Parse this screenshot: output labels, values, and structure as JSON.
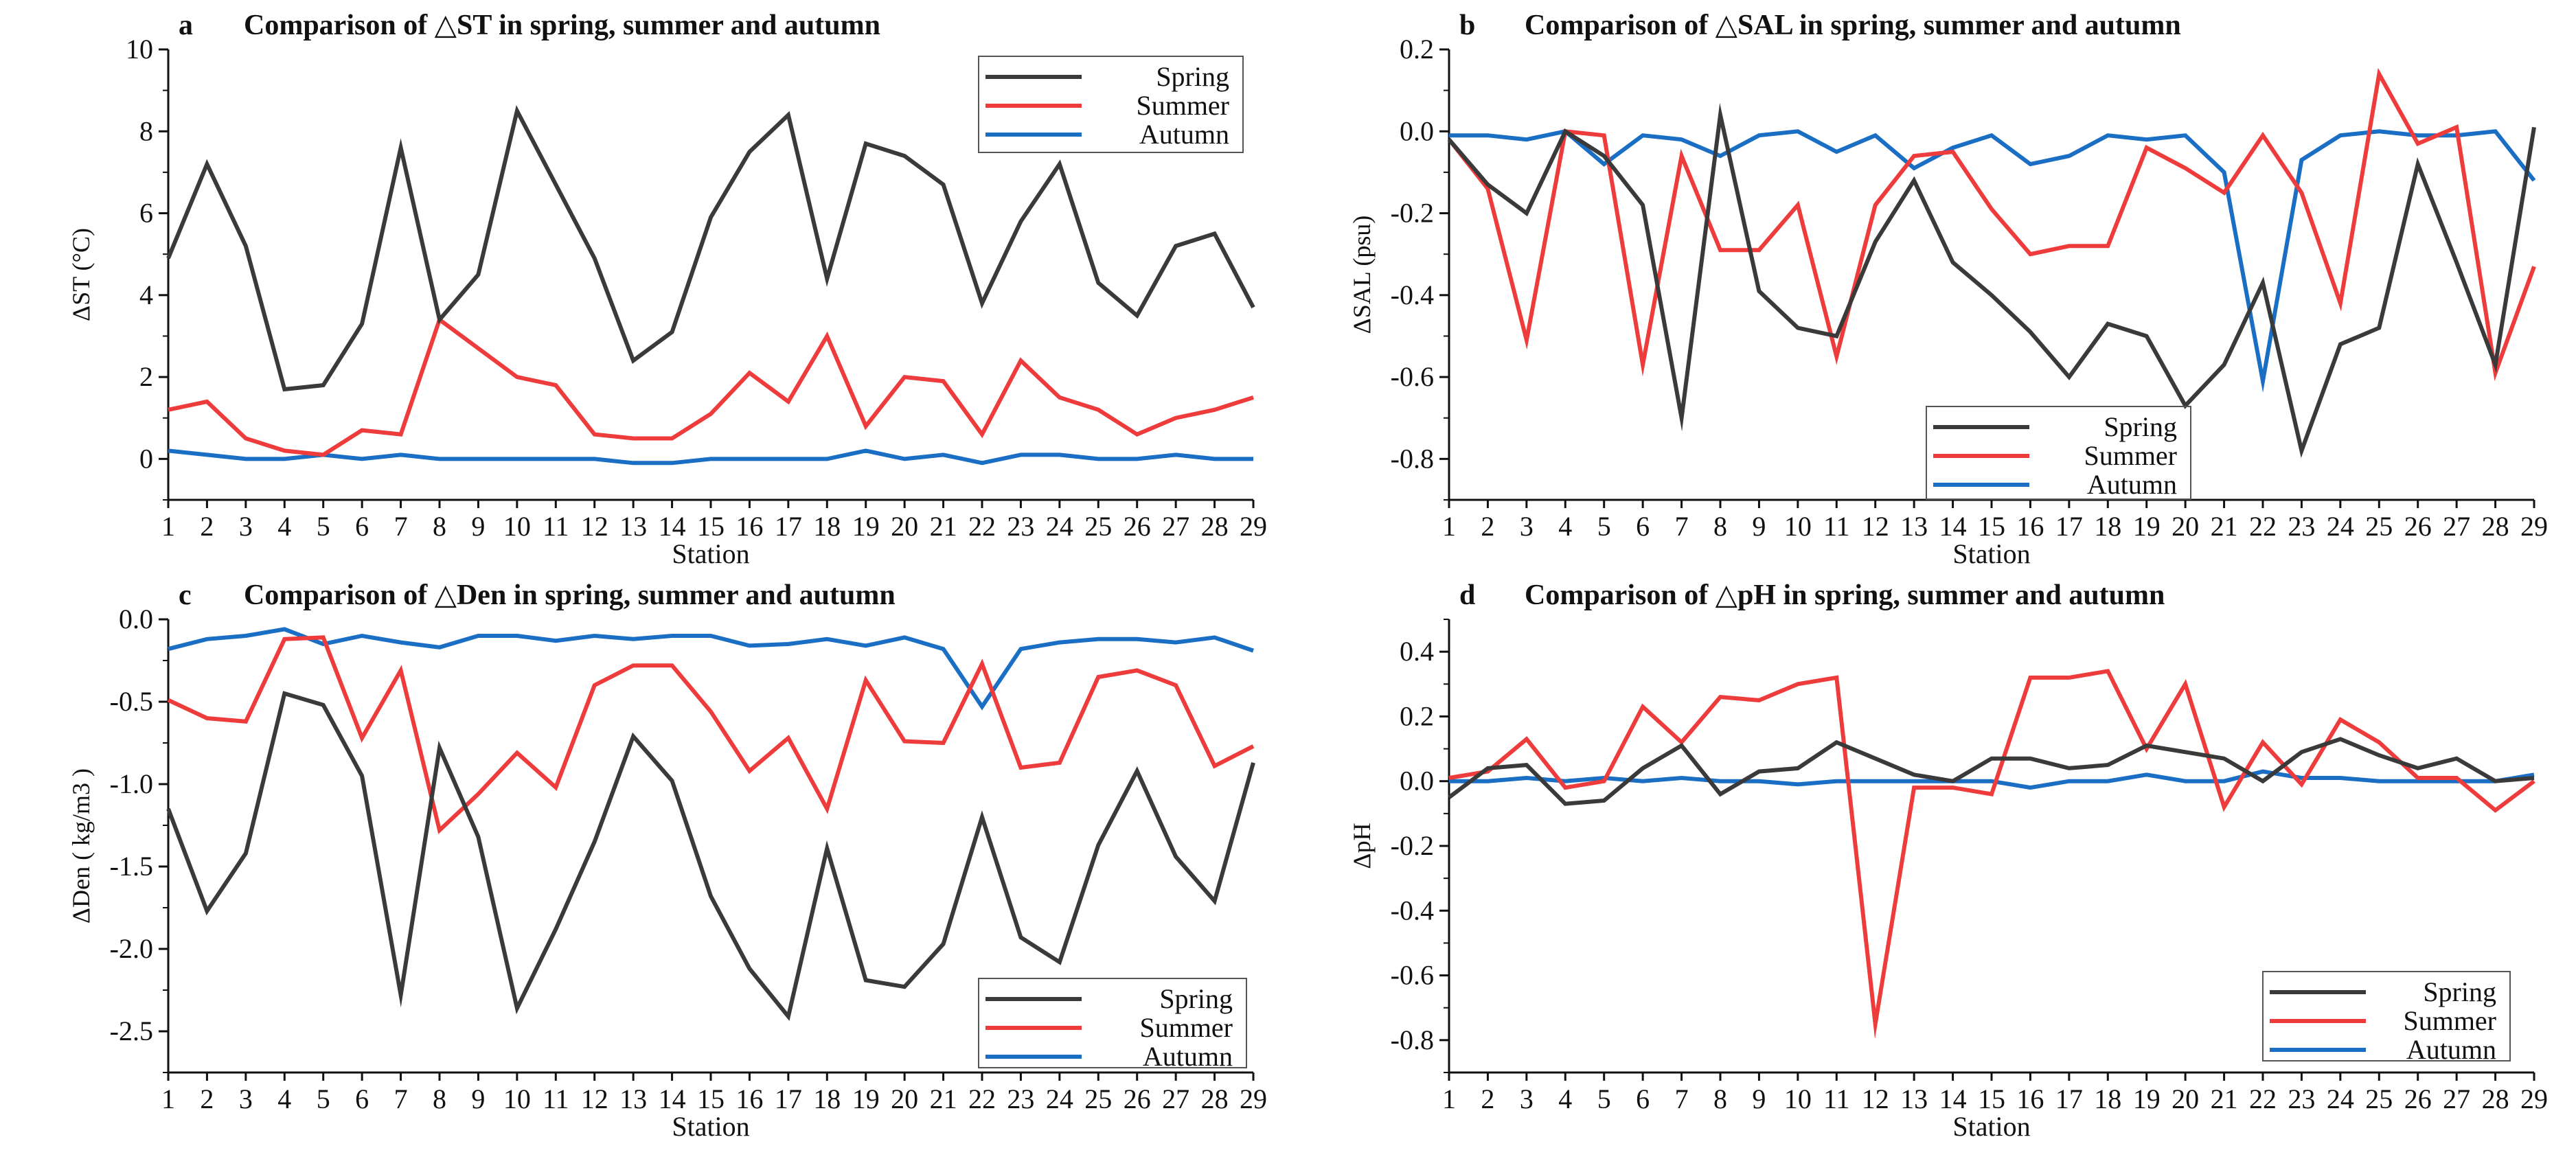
{
  "figure": {
    "colors": {
      "spring": "#3a3a3a",
      "summer": "#ee3b3b",
      "autumn": "#1a6fc4",
      "axis": "#111111"
    }
  },
  "chart_data": [
    {
      "id": "a",
      "type": "line",
      "letter": "a",
      "title": "Comparison of △ST in spring, summer and autumn",
      "xlabel": "Station",
      "ylabel": "ΔST (°C)",
      "x": [
        1,
        2,
        3,
        4,
        5,
        6,
        7,
        8,
        9,
        10,
        11,
        12,
        13,
        14,
        15,
        16,
        17,
        18,
        19,
        20,
        21,
        22,
        23,
        24,
        25,
        26,
        27,
        28,
        29
      ],
      "x_tick_labels": [
        "1",
        "2",
        "3",
        "4",
        "5",
        "6",
        "7",
        "8",
        "9",
        "10",
        "11",
        "12",
        "13",
        "14",
        "15",
        "16",
        "17",
        "18",
        "19",
        "20",
        "21",
        "22",
        "23",
        "24",
        "25",
        "26",
        "27",
        "28",
        "29"
      ],
      "ylim": [
        -1,
        10
      ],
      "yticks": [
        0,
        2,
        4,
        6,
        8,
        10
      ],
      "ytick_labels": [
        "0",
        "2",
        "4",
        "6",
        "8",
        "10"
      ],
      "legend_position": "top-right",
      "legend_entries": [
        "Spring",
        "Summer",
        "Autumn"
      ],
      "series": [
        {
          "name": "Spring",
          "key": "spring",
          "values": [
            4.9,
            7.2,
            5.2,
            1.7,
            1.8,
            3.3,
            7.6,
            3.4,
            4.5,
            8.5,
            6.7,
            4.9,
            2.4,
            3.1,
            5.9,
            7.5,
            8.4,
            4.4,
            7.7,
            7.4,
            6.7,
            3.8,
            5.8,
            7.2,
            4.3,
            3.5,
            5.2,
            5.5,
            3.7
          ]
        },
        {
          "name": "Summer",
          "key": "summer",
          "values": [
            1.2,
            1.4,
            0.5,
            0.2,
            0.1,
            0.7,
            0.6,
            3.4,
            2.7,
            2.0,
            1.8,
            0.6,
            0.5,
            0.5,
            1.1,
            2.1,
            1.4,
            3.0,
            0.8,
            2.0,
            1.9,
            0.6,
            2.4,
            1.5,
            1.2,
            0.6,
            1.0,
            1.2,
            1.5
          ]
        },
        {
          "name": "Autumn",
          "key": "autumn",
          "values": [
            0.2,
            0.1,
            0.0,
            0.0,
            0.1,
            0.0,
            0.1,
            0.0,
            0.0,
            0.0,
            0.0,
            0.0,
            -0.1,
            -0.1,
            0.0,
            0.0,
            0.0,
            0.0,
            0.2,
            0.0,
            0.1,
            -0.1,
            0.1,
            0.1,
            0.0,
            0.0,
            0.1,
            0.0,
            0.0
          ]
        }
      ]
    },
    {
      "id": "b",
      "type": "line",
      "letter": "b",
      "title": "Comparison of △SAL in spring, summer and autumn",
      "xlabel": "Station",
      "ylabel": "ΔSAL (psu)",
      "x": [
        1,
        2,
        3,
        4,
        5,
        6,
        7,
        8,
        9,
        10,
        11,
        12,
        13,
        14,
        15,
        16,
        17,
        18,
        19,
        20,
        21,
        22,
        23,
        24,
        25,
        26,
        27,
        28,
        29
      ],
      "x_tick_labels": [
        "1",
        "2",
        "3",
        "4",
        "5",
        "6",
        "7",
        "8",
        "9",
        "10",
        "11",
        "12",
        "13",
        "14",
        "15",
        "16",
        "17",
        "18",
        "19",
        "20",
        "21",
        "22",
        "23",
        "24",
        "25",
        "26",
        "27",
        "28",
        "29"
      ],
      "ylim": [
        -0.9,
        0.2
      ],
      "yticks": [
        0.2,
        0.0,
        -0.2,
        -0.4,
        -0.6,
        -0.8
      ],
      "ytick_labels": [
        "0.2",
        "0.0",
        "-0.2",
        "-0.4",
        "-0.6",
        "-0.8"
      ],
      "legend_position": "bottom-left",
      "legend_entries": [
        "Spring",
        "Summer",
        "Autumn"
      ],
      "series": [
        {
          "name": "Spring",
          "key": "spring",
          "values": [
            -0.02,
            -0.13,
            -0.2,
            0.0,
            -0.06,
            -0.18,
            -0.7,
            0.04,
            -0.39,
            -0.48,
            -0.5,
            -0.27,
            -0.12,
            -0.32,
            -0.4,
            -0.49,
            -0.6,
            -0.47,
            -0.5,
            -0.67,
            -0.57,
            -0.37,
            -0.78,
            -0.52,
            -0.48,
            -0.08,
            -0.32,
            -0.57,
            0.01
          ]
        },
        {
          "name": "Summer",
          "key": "summer",
          "values": [
            -0.02,
            -0.14,
            -0.51,
            0.0,
            -0.01,
            -0.57,
            -0.06,
            -0.29,
            -0.29,
            -0.18,
            -0.55,
            -0.18,
            -0.06,
            -0.05,
            -0.19,
            -0.3,
            -0.28,
            -0.28,
            -0.04,
            -0.09,
            -0.15,
            -0.01,
            -0.15,
            -0.42,
            0.14,
            -0.03,
            0.01,
            -0.59,
            -0.33
          ]
        },
        {
          "name": "Autumn",
          "key": "autumn",
          "values": [
            -0.01,
            -0.01,
            -0.02,
            0.0,
            -0.08,
            -0.01,
            -0.02,
            -0.06,
            -0.01,
            0.0,
            -0.05,
            -0.01,
            -0.09,
            -0.04,
            -0.01,
            -0.08,
            -0.06,
            -0.01,
            -0.02,
            -0.01,
            -0.1,
            -0.61,
            -0.07,
            -0.01,
            0.0,
            -0.01,
            -0.01,
            0.0,
            -0.12
          ]
        }
      ]
    },
    {
      "id": "c",
      "type": "line",
      "letter": "c",
      "title": "Comparison of △Den in spring, summer and autumn",
      "xlabel": "Station",
      "ylabel": "ΔDen ( kg/m3 )",
      "x": [
        1,
        2,
        3,
        4,
        5,
        6,
        7,
        8,
        9,
        10,
        11,
        12,
        13,
        14,
        15,
        16,
        17,
        18,
        19,
        20,
        21,
        22,
        23,
        24,
        25,
        26,
        27,
        28,
        29
      ],
      "x_tick_labels": [
        "1",
        "2",
        "3",
        "4",
        "5",
        "6",
        "7",
        "8",
        "9",
        "10",
        "11",
        "12",
        "13",
        "14",
        "15",
        "16",
        "17",
        "18",
        "19",
        "20",
        "21",
        "22",
        "23",
        "24",
        "25",
        "26",
        "27",
        "28",
        "29"
      ],
      "ylim": [
        -2.75,
        0.0
      ],
      "yticks": [
        0.0,
        -0.5,
        -1.0,
        -1.5,
        -2.0,
        -2.5
      ],
      "ytick_labels": [
        "0.0",
        "-0.5",
        "-1.0",
        "-1.5",
        "-2.0",
        "-2.5"
      ],
      "legend_position": "bottom-right",
      "legend_entries": [
        "Spring",
        "Summer",
        "Autumn"
      ],
      "series": [
        {
          "name": "Spring",
          "key": "spring",
          "values": [
            -1.15,
            -1.77,
            -1.42,
            -0.45,
            -0.52,
            -0.95,
            -2.28,
            -0.78,
            -1.32,
            -2.36,
            -1.88,
            -1.35,
            -0.71,
            -0.98,
            -1.68,
            -2.12,
            -2.41,
            -1.39,
            -2.19,
            -2.23,
            -1.97,
            -1.2,
            -1.93,
            -2.08,
            -1.37,
            -0.92,
            -1.44,
            -1.71,
            -0.87
          ]
        },
        {
          "name": "Summer",
          "key": "summer",
          "values": [
            -0.49,
            -0.6,
            -0.62,
            -0.12,
            -0.11,
            -0.72,
            -0.31,
            -1.28,
            -1.06,
            -0.81,
            -1.02,
            -0.4,
            -0.28,
            -0.28,
            -0.56,
            -0.92,
            -0.72,
            -1.15,
            -0.37,
            -0.74,
            -0.75,
            -0.27,
            -0.9,
            -0.87,
            -0.35,
            -0.31,
            -0.4,
            -0.89,
            -0.77
          ]
        },
        {
          "name": "Autumn",
          "key": "autumn",
          "values": [
            -0.18,
            -0.12,
            -0.1,
            -0.06,
            -0.15,
            -0.1,
            -0.14,
            -0.17,
            -0.1,
            -0.1,
            -0.13,
            -0.1,
            -0.12,
            -0.1,
            -0.1,
            -0.16,
            -0.15,
            -0.12,
            -0.16,
            -0.11,
            -0.18,
            -0.53,
            -0.18,
            -0.14,
            -0.12,
            -0.12,
            -0.14,
            -0.11,
            -0.19
          ]
        }
      ]
    },
    {
      "id": "d",
      "type": "line",
      "letter": "d",
      "title": "Comparison of △pH in spring, summer and autumn",
      "xlabel": "Station",
      "ylabel": "ΔpH",
      "x": [
        1,
        2,
        3,
        4,
        5,
        6,
        7,
        8,
        9,
        10,
        11,
        12,
        13,
        14,
        15,
        16,
        17,
        18,
        19,
        20,
        21,
        22,
        23,
        24,
        25,
        26,
        27,
        28,
        29
      ],
      "x_tick_labels": [
        "1",
        "2",
        "3",
        "4",
        "5",
        "6",
        "7",
        "8",
        "9",
        "10",
        "11",
        "12",
        "13",
        "14",
        "15",
        "16",
        "17",
        "18",
        "19",
        "20",
        "21",
        "22",
        "23",
        "24",
        "25",
        "26",
        "27",
        "28",
        "29"
      ],
      "ylim": [
        -0.9,
        0.5
      ],
      "yticks": [
        0.4,
        0.2,
        0.0,
        -0.2,
        -0.4,
        -0.6,
        -0.8
      ],
      "ytick_labels": [
        "0.4",
        "0.2",
        "0.0",
        "-0.2",
        "-0.4",
        "-0.6",
        "-0.8"
      ],
      "legend_position": "bottom-right",
      "legend_entries": [
        "Spring",
        "Summer",
        "Autumn"
      ],
      "series": [
        {
          "name": "Spring",
          "key": "spring",
          "values": [
            -0.05,
            0.04,
            0.05,
            -0.07,
            -0.06,
            0.04,
            0.11,
            -0.04,
            0.03,
            0.04,
            0.12,
            0.07,
            0.02,
            0.0,
            0.07,
            0.07,
            0.04,
            0.05,
            0.11,
            0.09,
            0.07,
            0.0,
            0.09,
            0.13,
            0.08,
            0.04,
            0.07,
            0.0,
            0.01
          ]
        },
        {
          "name": "Summer",
          "key": "summer",
          "values": [
            0.01,
            0.03,
            0.13,
            -0.02,
            0.0,
            0.23,
            0.12,
            0.26,
            0.25,
            0.3,
            0.32,
            -0.75,
            -0.02,
            -0.02,
            -0.04,
            0.32,
            0.32,
            0.34,
            0.1,
            0.3,
            -0.08,
            0.12,
            -0.01,
            0.19,
            0.12,
            0.01,
            0.01,
            -0.09,
            0.0
          ]
        },
        {
          "name": "Autumn",
          "key": "autumn",
          "values": [
            0.0,
            0.0,
            0.01,
            0.0,
            0.01,
            0.0,
            0.01,
            0.0,
            0.0,
            -0.01,
            0.0,
            0.0,
            0.0,
            0.0,
            0.0,
            -0.02,
            0.0,
            0.0,
            0.02,
            0.0,
            0.0,
            0.03,
            0.01,
            0.01,
            0.0,
            0.0,
            0.0,
            0.0,
            0.02
          ]
        }
      ]
    }
  ]
}
